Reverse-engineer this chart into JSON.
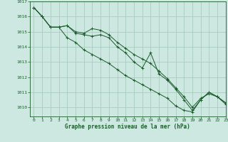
{
  "background_color": "#cce8e0",
  "grid_color": "#aaccbf",
  "line_color": "#1a5c2a",
  "xlabel": "Graphe pression niveau de la mer (hPa)",
  "xlim": [
    -0.5,
    23
  ],
  "ylim": [
    1009.4,
    1017.0
  ],
  "yticks": [
    1010,
    1011,
    1012,
    1013,
    1014,
    1015,
    1016,
    1017
  ],
  "xticks": [
    0,
    1,
    2,
    3,
    4,
    5,
    6,
    7,
    8,
    9,
    10,
    11,
    12,
    13,
    14,
    15,
    16,
    17,
    18,
    19,
    20,
    21,
    22,
    23
  ],
  "series1": [
    1016.6,
    1016.0,
    1015.3,
    1015.3,
    1015.4,
    1015.0,
    1014.9,
    1015.2,
    1015.1,
    1014.8,
    1014.3,
    1013.9,
    1013.5,
    1013.2,
    1012.9,
    1012.4,
    1011.9,
    1011.3,
    1010.7,
    1010.0,
    1010.6,
    1010.9,
    1010.7,
    1010.3
  ],
  "series2": [
    1016.6,
    1016.0,
    1015.3,
    1015.3,
    1015.4,
    1014.9,
    1014.8,
    1014.7,
    1014.8,
    1014.6,
    1014.0,
    1013.6,
    1013.0,
    1012.6,
    1013.6,
    1012.2,
    1011.8,
    1011.2,
    1010.5,
    1009.8,
    1010.5,
    1011.0,
    1010.7,
    1010.3
  ],
  "series3": [
    1016.6,
    1016.0,
    1015.3,
    1015.3,
    1014.6,
    1014.3,
    1013.8,
    1013.5,
    1013.2,
    1012.9,
    1012.5,
    1012.1,
    1011.8,
    1011.5,
    1011.2,
    1010.9,
    1010.6,
    1010.1,
    1009.8,
    1009.7,
    1010.5,
    1011.0,
    1010.7,
    1010.2
  ]
}
